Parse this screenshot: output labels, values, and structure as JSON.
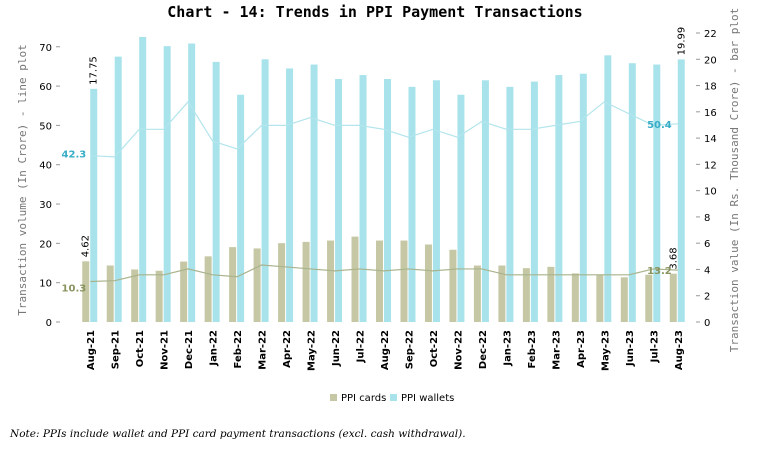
{
  "chart_data": {
    "type": "bar-line",
    "title": "Chart - 14: Trends in PPI Payment Transactions",
    "y_label": "Transaction volume (In Crore) - line plot",
    "y2_label": "Transaction value (In Rs. Thousand Crore) - bar plot",
    "note": "Note: PPIs include wallet and PPI card payment transactions (excl. cash withdrawal).",
    "categories": [
      "Aug-21",
      "Sep-21",
      "Oct-21",
      "Nov-21",
      "Dec-21",
      "Jan-22",
      "Feb-22",
      "Mar-22",
      "Apr-22",
      "May-22",
      "Jun-22",
      "Jul-22",
      "Aug-22",
      "Sep-22",
      "Oct-22",
      "Nov-22",
      "Dec-22",
      "Jan-23",
      "Feb-23",
      "Mar-23",
      "Apr-23",
      "May-23",
      "Jun-23",
      "Jul-23",
      "Aug-23"
    ],
    "ylim": [
      0,
      73.5
    ],
    "yticks": [
      0,
      10,
      20,
      30,
      40,
      50,
      60,
      70
    ],
    "y2lim": [
      0,
      22
    ],
    "y2ticks": [
      0,
      2,
      4,
      6,
      8,
      10,
      12,
      14,
      16,
      18,
      20,
      22
    ],
    "series": [
      {
        "name": "PPI cards",
        "kind": "bar",
        "axis": "y2",
        "color": "#c6c8a5",
        "values": [
          4.62,
          4.3,
          4.0,
          3.9,
          4.6,
          5.0,
          5.7,
          5.6,
          6.0,
          6.1,
          6.2,
          6.5,
          6.2,
          6.2,
          5.9,
          5.5,
          4.3,
          4.3,
          4.1,
          4.2,
          3.7,
          3.6,
          3.4,
          3.6,
          3.68
        ],
        "value_labels": [
          "4.62",
          null,
          null,
          null,
          null,
          null,
          null,
          null,
          null,
          null,
          null,
          null,
          null,
          null,
          null,
          null,
          null,
          null,
          null,
          null,
          null,
          null,
          null,
          null,
          "3.68"
        ]
      },
      {
        "name": "PPI wallets",
        "kind": "bar",
        "axis": "y2",
        "color": "#a8e3eb",
        "values": [
          17.75,
          20.2,
          21.7,
          21.0,
          21.2,
          19.8,
          17.3,
          20.0,
          19.3,
          19.6,
          18.5,
          18.8,
          18.5,
          17.9,
          18.4,
          17.3,
          18.4,
          17.9,
          18.3,
          18.8,
          18.9,
          20.3,
          19.7,
          19.6,
          19.99
        ],
        "value_labels": [
          "17.75",
          null,
          null,
          null,
          null,
          null,
          null,
          null,
          null,
          null,
          null,
          null,
          null,
          null,
          null,
          null,
          null,
          null,
          null,
          null,
          null,
          null,
          null,
          null,
          "19.99"
        ]
      },
      {
        "kind": "line",
        "color": "#a9b38c",
        "label_color": "#8a9460",
        "values": [
          10.3,
          10.5,
          12,
          12,
          13.5,
          12,
          11.5,
          14.5,
          14,
          13.5,
          13,
          13.5,
          13,
          13.5,
          13,
          13.5,
          13.5,
          12,
          12,
          12,
          12,
          12,
          12,
          13.5,
          13.2
        ],
        "value_labels": [
          "10.3",
          null,
          null,
          null,
          null,
          null,
          null,
          null,
          null,
          null,
          null,
          null,
          null,
          null,
          null,
          null,
          null,
          null,
          null,
          null,
          null,
          null,
          null,
          null,
          "13.2"
        ]
      },
      {
        "kind": "line",
        "color": "#b3e5ec",
        "label_color": "#38adc6",
        "values": [
          42.3,
          42,
          49,
          49,
          56,
          46,
          44,
          50,
          50,
          52,
          50,
          50,
          49,
          47,
          49,
          47,
          51,
          49,
          49,
          50,
          51,
          56,
          53,
          50,
          50.4
        ],
        "value_labels": [
          "42.3",
          null,
          null,
          null,
          null,
          null,
          null,
          null,
          null,
          null,
          null,
          null,
          null,
          null,
          null,
          null,
          null,
          null,
          null,
          null,
          null,
          null,
          null,
          null,
          "50.4"
        ]
      }
    ]
  }
}
